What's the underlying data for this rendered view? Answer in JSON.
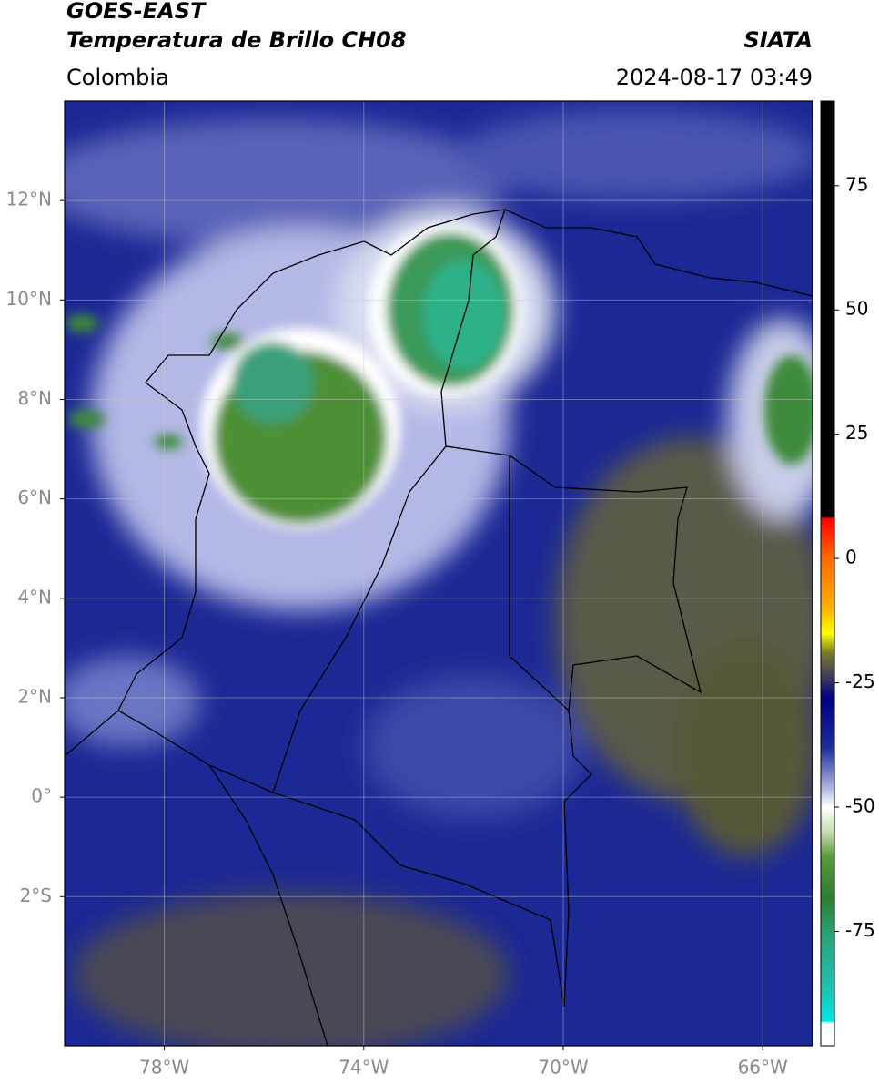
{
  "chart_data": {
    "type": "map",
    "title": "GOES-EAST",
    "subtitle": "Temperatura de Brillo CH08",
    "source": "SIATA",
    "region": "Colombia",
    "datetime": "2024-08-17 03:49",
    "xlim": [
      -80,
      -65
    ],
    "ylim": [
      -5,
      14
    ],
    "xticks": [
      {
        "value": -78,
        "label": "78°W"
      },
      {
        "value": -74,
        "label": "74°W"
      },
      {
        "value": -70,
        "label": "70°W"
      },
      {
        "value": -66,
        "label": "66°W"
      }
    ],
    "yticks": [
      {
        "value": 12,
        "label": "12°N"
      },
      {
        "value": 10,
        "label": "10°N"
      },
      {
        "value": 8,
        "label": "8°N"
      },
      {
        "value": 6,
        "label": "6°N"
      },
      {
        "value": 4,
        "label": "4°N"
      },
      {
        "value": 2,
        "label": "2°N"
      },
      {
        "value": 0,
        "label": "0°"
      },
      {
        "value": -2,
        "label": "2°S"
      }
    ],
    "grid": true,
    "colorbar": {
      "lim": [
        -98,
        92
      ],
      "ticks": [
        75,
        50,
        25,
        0,
        -25,
        -50,
        -75
      ],
      "stops": [
        {
          "value": 92,
          "color": "#000000"
        },
        {
          "value": 8.5,
          "color": "#000000"
        },
        {
          "value": 8,
          "color": "#ff0000"
        },
        {
          "value": 0,
          "color": "#ff6a00"
        },
        {
          "value": -10,
          "color": "#ffb000"
        },
        {
          "value": -15,
          "color": "#ffff00"
        },
        {
          "value": -19,
          "color": "#7a7a2a"
        },
        {
          "value": -24,
          "color": "#3a3a5a"
        },
        {
          "value": -28,
          "color": "#000080"
        },
        {
          "value": -38,
          "color": "#1e2d9a"
        },
        {
          "value": -45,
          "color": "#9aa0d8"
        },
        {
          "value": -50,
          "color": "#ffffff"
        },
        {
          "value": -55,
          "color": "#c8dcb0"
        },
        {
          "value": -60,
          "color": "#5a9a3a"
        },
        {
          "value": -68,
          "color": "#2e7d32"
        },
        {
          "value": -76,
          "color": "#2aa37a"
        },
        {
          "value": -86,
          "color": "#20c0b0"
        },
        {
          "value": -93,
          "color": "#00e5e5"
        },
        {
          "value": -93.5,
          "color": "#ffffff"
        },
        {
          "value": -98,
          "color": "#ffffff"
        }
      ]
    }
  }
}
